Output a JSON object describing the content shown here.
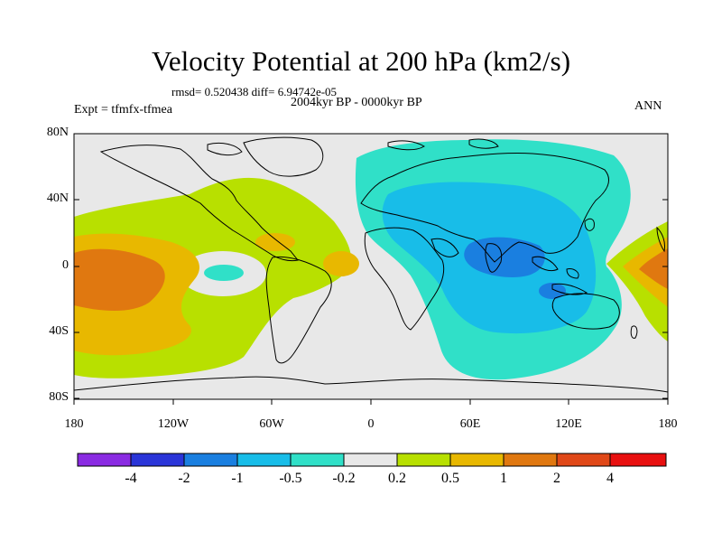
{
  "header": {
    "title": "Velocity Potential at 200 hPa (km2/s)",
    "stats": "rmsd= 0.520438 diff= 6.94742e-05",
    "period": "2004kyr BP - 0000kyr BP",
    "experiment": "Expt = tfmfx-tfmea",
    "season": "ANN"
  },
  "axes": {
    "y_labels": [
      "80N",
      "40N",
      "0",
      "40S",
      "80S"
    ],
    "x_labels": [
      "180",
      "120W",
      "60W",
      "0",
      "60E",
      "120E",
      "180"
    ]
  },
  "colorbar": {
    "labels": [
      "-4",
      "-2",
      "-1",
      "-0.5",
      "-0.2",
      "0.2",
      "0.5",
      "1",
      "2",
      "4"
    ],
    "colors": [
      "#8a2be2",
      "#2a35d8",
      "#1a7fe0",
      "#18bde8",
      "#30e0c8",
      "#e8e8e8",
      "#b8e000",
      "#e8b800",
      "#e07810",
      "#e04818",
      "#e81010"
    ]
  },
  "map_colors": {
    "ocean_bg": "#e8e8e8",
    "neg_02": "#30e0c8",
    "neg_05": "#18bde8",
    "neg_1": "#1a7fe0",
    "pos_02": "#b8e000",
    "pos_05": "#e8b800",
    "pos_1": "#e07810"
  }
}
